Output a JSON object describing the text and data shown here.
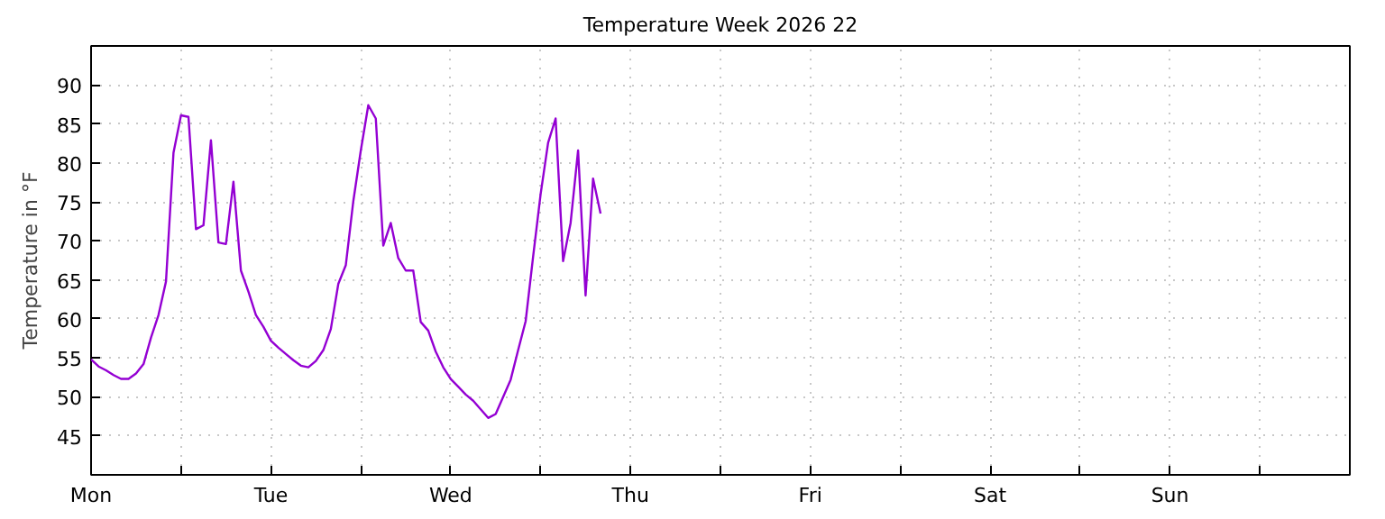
{
  "chart_data": {
    "type": "line",
    "title": "Temperature Week 2026 22",
    "ylabel": "Temperature in °F",
    "categories": [
      "Mon",
      null,
      null,
      null,
      null,
      null,
      null,
      null,
      null,
      null,
      null,
      null,
      null,
      null,
      null,
      null,
      null,
      null,
      null,
      null,
      null,
      null,
      null,
      null,
      "Tue",
      null,
      null,
      null,
      null,
      null,
      null,
      null,
      null,
      null,
      null,
      null,
      null,
      null,
      null,
      null,
      null,
      null,
      null,
      null,
      null,
      null,
      null,
      null,
      "Wed",
      null,
      null,
      null,
      null,
      null,
      null,
      null,
      null,
      null,
      null,
      null,
      null,
      null,
      null,
      null,
      null,
      null,
      null,
      null,
      null,
      null,
      null,
      null,
      "Thu",
      null,
      null,
      null,
      null,
      null,
      null,
      null,
      null,
      null,
      null,
      null,
      null,
      null,
      null,
      null,
      null,
      null,
      null,
      null,
      null,
      null,
      null,
      null,
      "Fri",
      null,
      null,
      null,
      null,
      null,
      null,
      null,
      null,
      null,
      null,
      null,
      null,
      null,
      null,
      null,
      null,
      null,
      null,
      null,
      null,
      null,
      null,
      null,
      "Sat",
      null,
      null,
      null,
      null,
      null,
      null,
      null,
      null,
      null,
      null,
      null,
      null,
      null,
      null,
      null,
      null,
      null,
      null,
      null,
      null,
      null,
      null,
      null,
      "Sun",
      null,
      null,
      null,
      null,
      null,
      null,
      null,
      null,
      null,
      null,
      null,
      null,
      null,
      null,
      null,
      null,
      null,
      null,
      null,
      null,
      null,
      null,
      null
    ],
    "ylim": [
      40,
      95
    ],
    "yticks": [
      45,
      50,
      55,
      60,
      65,
      70,
      75,
      80,
      85,
      90
    ],
    "grid": true,
    "marker": "none",
    "line_style": "solid",
    "series": [
      {
        "color": "#9400d3",
        "values": [
          54.8,
          53.9,
          53.4,
          52.8,
          52.3,
          52.3,
          53.0,
          54.2,
          57.6,
          60.5,
          64.8,
          81.3,
          86.1,
          85.9,
          71.5,
          72.0,
          82.9,
          69.8,
          69.6,
          77.6,
          66.2,
          63.5,
          60.5,
          59.0,
          57.2,
          56.3,
          55.5,
          54.7,
          54.0,
          53.8,
          54.6,
          56.0,
          58.7,
          64.5,
          66.9,
          75.1,
          81.6,
          87.4,
          85.7,
          69.4,
          72.3,
          67.8,
          66.2,
          66.2,
          59.6,
          58.5,
          55.8,
          53.8,
          52.3,
          51.3,
          50.3,
          49.5,
          48.4,
          47.3,
          47.8,
          50.0,
          52.2,
          56.0,
          59.7,
          68.0,
          76.0,
          82.6,
          85.7,
          67.4,
          72.3,
          81.6,
          63.0,
          78.0,
          73.5,
          null,
          null,
          null,
          null,
          null,
          null,
          null,
          null,
          null,
          null,
          null,
          null,
          null,
          null,
          null,
          null,
          null,
          null,
          null,
          null,
          null,
          null,
          null,
          null,
          null,
          null,
          null,
          null,
          null,
          null,
          null,
          null,
          null,
          null,
          null,
          null,
          null,
          null,
          null,
          null,
          null,
          null,
          null,
          null,
          null,
          null,
          null,
          null,
          null,
          null,
          null,
          null,
          null,
          null,
          null,
          null,
          null,
          null,
          null,
          null,
          null,
          null,
          null,
          null,
          null,
          null,
          null,
          null,
          null,
          null,
          null,
          null,
          null,
          null,
          null,
          null,
          null,
          null,
          null,
          null,
          null,
          null,
          null,
          null,
          null,
          null,
          null,
          null,
          null,
          null,
          null,
          null,
          null,
          null,
          null,
          null,
          null,
          null,
          null
        ]
      }
    ]
  }
}
